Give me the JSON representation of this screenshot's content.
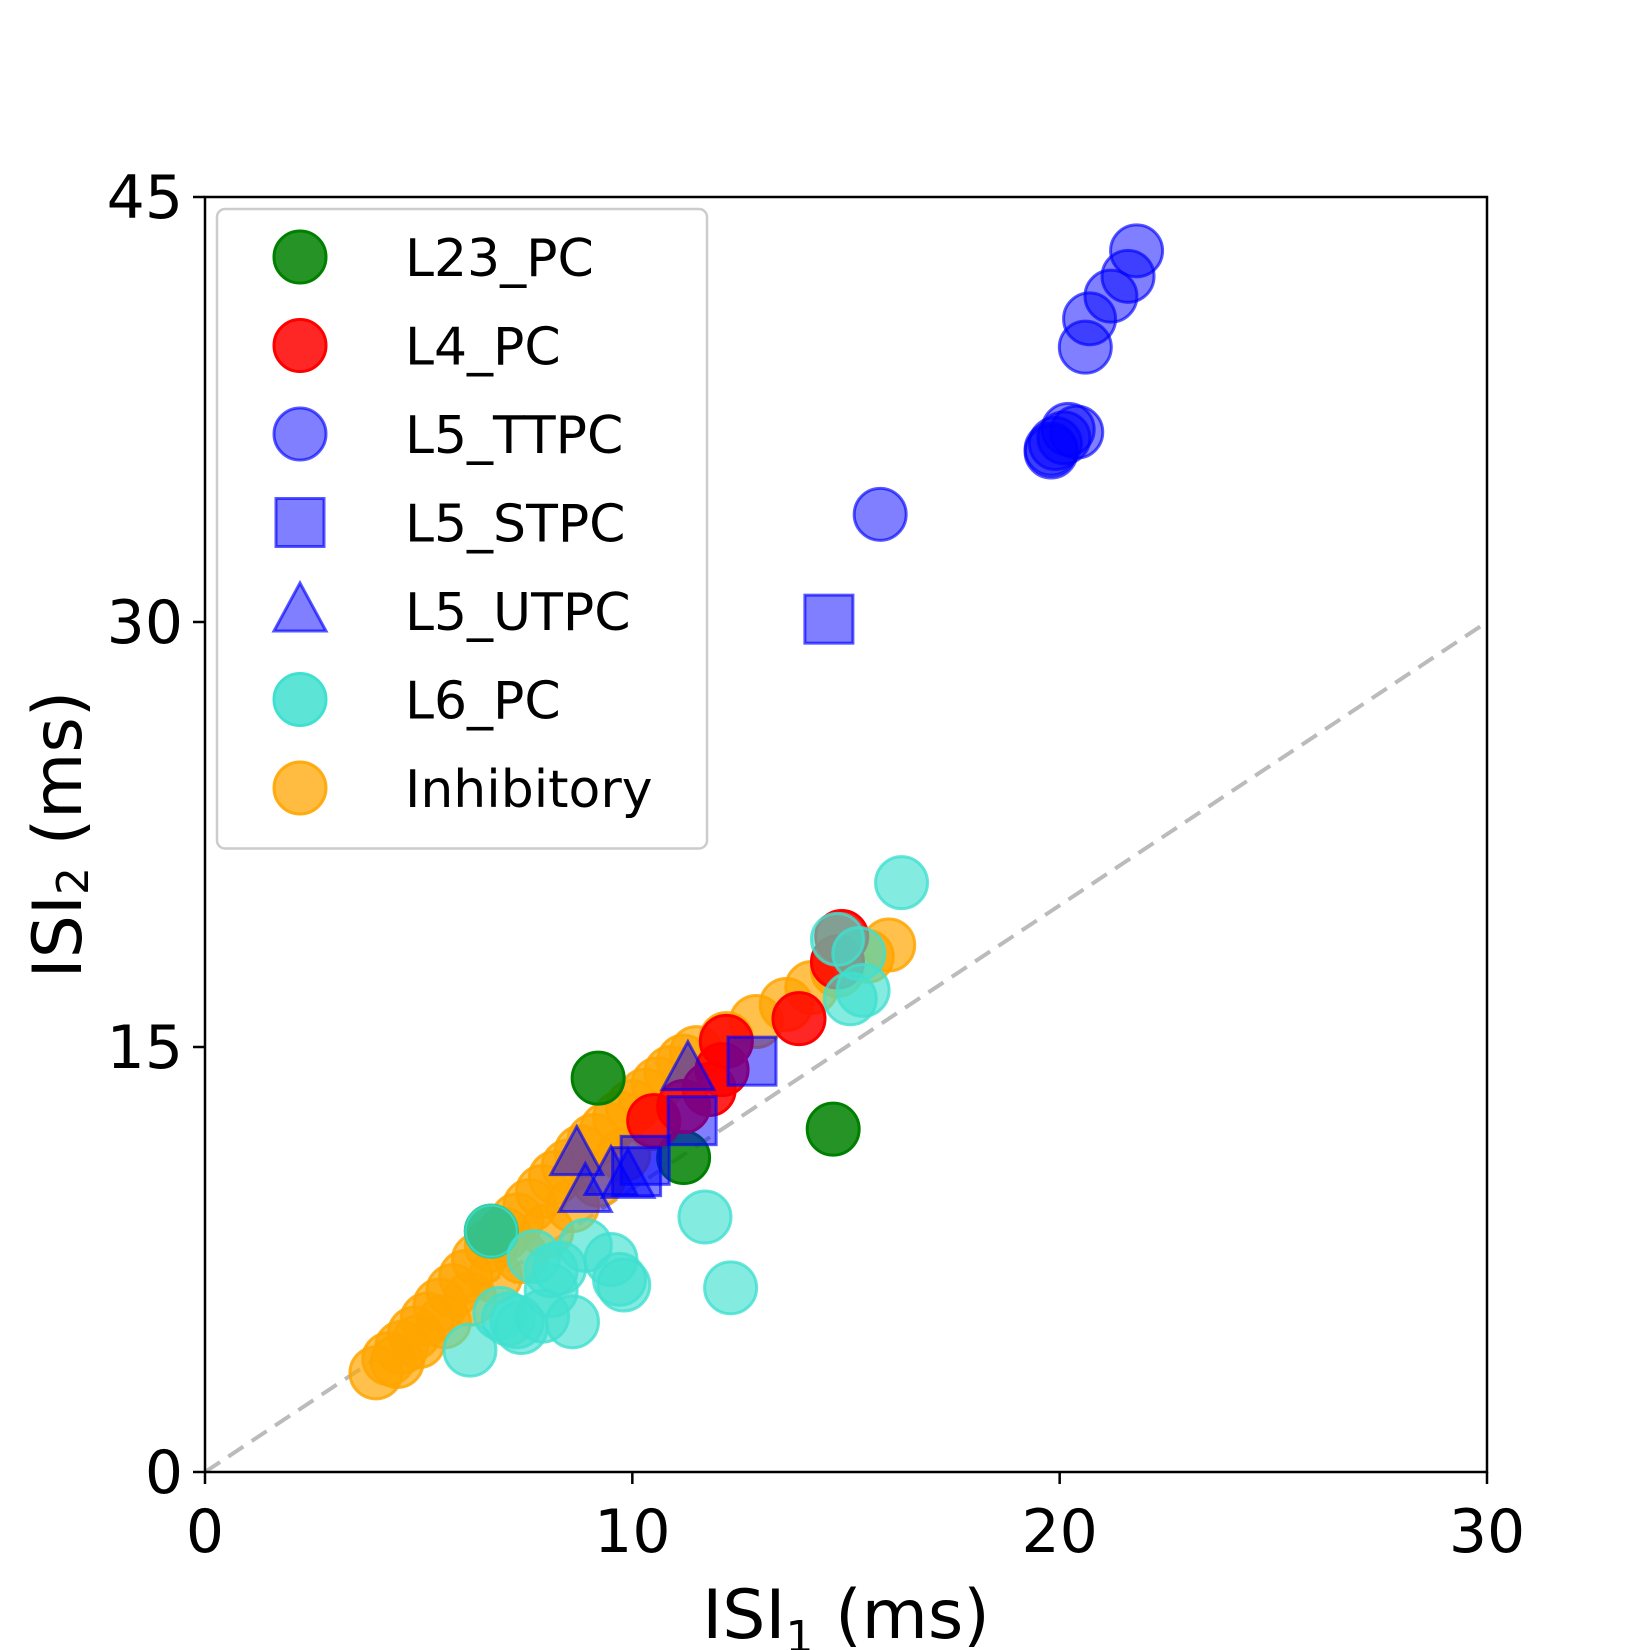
{
  "chart_data": {
    "type": "scatter",
    "xlabel": {
      "base": "ISI",
      "sub": "1",
      "unit": " (ms)"
    },
    "ylabel": {
      "base": "ISI",
      "sub": "2",
      "unit": " (ms)"
    },
    "xlim": [
      0,
      30
    ],
    "ylim": [
      0,
      45
    ],
    "xticks": [
      0,
      10,
      20,
      30
    ],
    "yticks": [
      0,
      15,
      30,
      45
    ],
    "grid": false,
    "legend_position": "top-left",
    "reference_line": {
      "style": "dashed",
      "color": "#bbbbbb",
      "from": [
        0,
        0
      ],
      "to": [
        30,
        30
      ]
    },
    "series": [
      {
        "name": "Inhibitory",
        "marker": "circle",
        "color": "#FFA500",
        "alpha": 0.7,
        "points": [
          [
            4,
            3.5
          ],
          [
            4.3,
            4
          ],
          [
            4.6,
            4.4
          ],
          [
            4.9,
            4.9
          ],
          [
            5.2,
            5.4
          ],
          [
            5.5,
            5.9
          ],
          [
            5.8,
            6.4
          ],
          [
            6.1,
            6.9
          ],
          [
            6.4,
            7.5
          ],
          [
            6.7,
            8
          ],
          [
            7,
            8.4
          ],
          [
            7.3,
            8.9
          ],
          [
            7.6,
            9.4
          ],
          [
            7.9,
            9.9
          ],
          [
            8.2,
            10.4
          ],
          [
            8.5,
            10.8
          ],
          [
            8.8,
            11.3
          ],
          [
            9.1,
            11.7
          ],
          [
            9.4,
            12.1
          ],
          [
            9.7,
            12.5
          ],
          [
            10,
            12.9
          ],
          [
            10.3,
            13.3
          ],
          [
            10.6,
            13.7
          ],
          [
            10.9,
            14.1
          ],
          [
            11.2,
            14.5
          ],
          [
            4.5,
            3.9
          ],
          [
            5,
            4.6
          ],
          [
            5.6,
            5.3
          ],
          [
            6.2,
            6.1
          ],
          [
            6.8,
            6.9
          ],
          [
            7.4,
            7.6
          ],
          [
            8,
            8.5
          ],
          [
            8.6,
            9.4
          ],
          [
            9.2,
            10.3
          ],
          [
            9.8,
            11.2
          ],
          [
            10.5,
            12.3
          ],
          [
            11.5,
            14.8
          ],
          [
            12.2,
            15.3
          ],
          [
            12.9,
            15.9
          ],
          [
            13.6,
            16.5
          ],
          [
            14.2,
            17.1
          ],
          [
            14.8,
            17.7
          ],
          [
            15.5,
            18.2
          ],
          [
            16,
            18.6
          ]
        ]
      },
      {
        "name": "L23_PC",
        "marker": "circle",
        "color": "#008000",
        "alpha": 0.85,
        "points": [
          [
            9.2,
            13.9
          ],
          [
            14.7,
            12.1
          ],
          [
            11.2,
            11.1
          ],
          [
            6.7,
            8.5
          ]
        ]
      },
      {
        "name": "L4_PC",
        "marker": "circle",
        "color": "#FF0000",
        "alpha": 0.85,
        "points": [
          [
            10.5,
            12.4
          ],
          [
            11.2,
            12.9
          ],
          [
            11.8,
            13.5
          ],
          [
            12.1,
            14.2
          ],
          [
            12.2,
            15.2
          ],
          [
            13.9,
            16
          ],
          [
            14.8,
            18
          ],
          [
            14.9,
            18.9
          ]
        ]
      },
      {
        "name": "L5_TTPC",
        "marker": "circle",
        "color": "#0000FF",
        "alpha": 0.5,
        "points": [
          [
            15.8,
            33.8
          ],
          [
            19.8,
            36
          ],
          [
            19.9,
            36.3
          ],
          [
            20.2,
            36.8
          ],
          [
            20.1,
            36.5
          ],
          [
            20.6,
            39.7
          ],
          [
            20.7,
            40.7
          ],
          [
            21.2,
            41.5
          ],
          [
            21.6,
            42.2
          ],
          [
            21.8,
            43.1
          ],
          [
            19.8,
            36.1
          ],
          [
            20.4,
            36.7
          ]
        ]
      },
      {
        "name": "L5_STPC",
        "marker": "square",
        "color": "#0000FF",
        "alpha": 0.5,
        "points": [
          [
            14.6,
            30.1
          ],
          [
            12.8,
            14.5
          ],
          [
            11.4,
            12.4
          ],
          [
            10.3,
            11
          ],
          [
            10.1,
            10.6
          ]
        ]
      },
      {
        "name": "L5_UTPC",
        "marker": "triangle",
        "color": "#0000FF",
        "alpha": 0.5,
        "points": [
          [
            11.3,
            14.2
          ],
          [
            8.7,
            11.2
          ],
          [
            8.9,
            9.9
          ],
          [
            9.5,
            10.5
          ],
          [
            9.9,
            10.4
          ]
        ]
      },
      {
        "name": "L6_PC",
        "marker": "circle",
        "color": "#40E0D0",
        "alpha": 0.65,
        "points": [
          [
            16.3,
            20.8
          ],
          [
            14.8,
            18.8
          ],
          [
            15.3,
            18.3
          ],
          [
            15.4,
            17
          ],
          [
            15.1,
            16.7
          ],
          [
            11.7,
            9
          ],
          [
            12.3,
            6.5
          ],
          [
            6.2,
            4.3
          ],
          [
            6.7,
            8.5
          ],
          [
            6.9,
            5.6
          ],
          [
            7.1,
            5.4
          ],
          [
            7.4,
            5.1
          ],
          [
            7.9,
            5.5
          ],
          [
            8.1,
            6.4
          ],
          [
            8.1,
            7.1
          ],
          [
            8.6,
            5.3
          ],
          [
            8.9,
            8
          ],
          [
            9.5,
            7.5
          ],
          [
            9.7,
            6.8
          ],
          [
            9.8,
            6.6
          ],
          [
            7.7,
            7.6
          ],
          [
            8.3,
            7.2
          ],
          [
            7.3,
            5.3
          ]
        ]
      }
    ],
    "legend_order": [
      "L23_PC",
      "L4_PC",
      "L5_TTPC",
      "L5_STPC",
      "L5_UTPC",
      "L6_PC",
      "Inhibitory"
    ]
  }
}
